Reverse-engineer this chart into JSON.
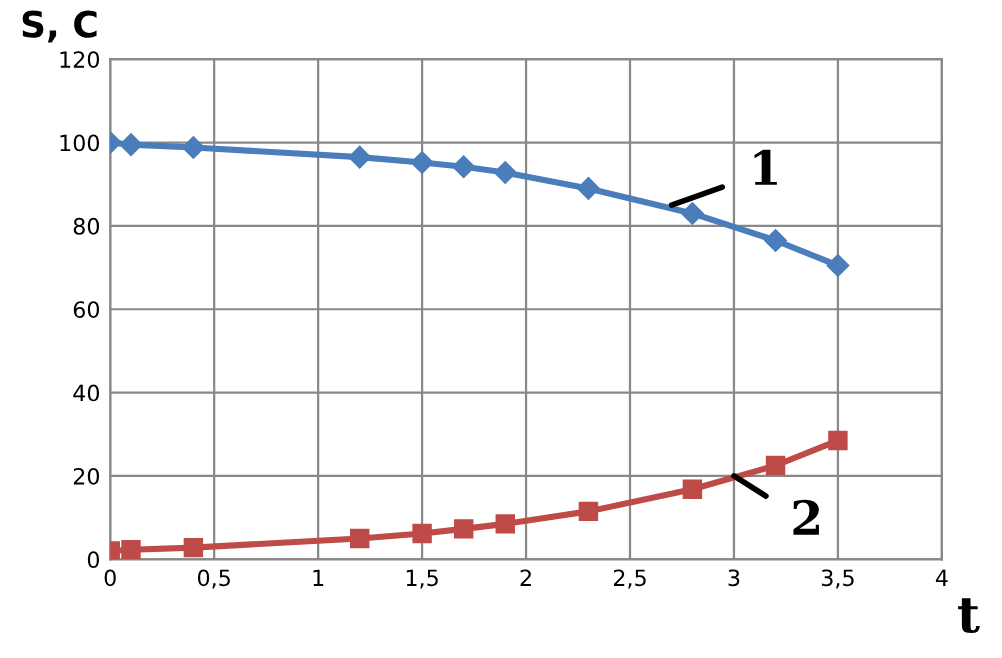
{
  "chart_data": {
    "type": "line",
    "xlabel": "t",
    "ylabel": "S, C",
    "x": [
      0,
      0.1,
      0.4,
      1.2,
      1.5,
      1.7,
      1.9,
      2.3,
      2.8,
      3.2,
      3.5
    ],
    "series": [
      {
        "color": "#4a7ebb",
        "marker": "diamond",
        "values": [
          100,
          99.5,
          98.8,
          96.5,
          95.2,
          94.2,
          92.8,
          89,
          83,
          76.5,
          70.5
        ]
      },
      {
        "color": "#be4b48",
        "marker": "square",
        "values": [
          2,
          2.3,
          2.8,
          5,
          6.2,
          7.3,
          8.5,
          11.5,
          16.8,
          22.5,
          28.5
        ]
      }
    ],
    "annotations": [
      {
        "text": "1",
        "x": 2.7,
        "y": 85
      },
      {
        "text": "2",
        "x": 3.0,
        "y": 20
      }
    ],
    "xlim": [
      0,
      4
    ],
    "ylim": [
      0,
      120
    ],
    "xticks": [
      0,
      {
        "value": 0.5,
        "label": "0,5"
      },
      1,
      {
        "value": 1.5,
        "label": "1,5"
      },
      2,
      {
        "value": 2.5,
        "label": "2,5"
      },
      3,
      {
        "value": 3.5,
        "label": "3,5"
      },
      4
    ],
    "yticks": [
      0,
      20,
      40,
      60,
      80,
      100,
      120
    ],
    "grid": true,
    "line_style": "solid"
  }
}
